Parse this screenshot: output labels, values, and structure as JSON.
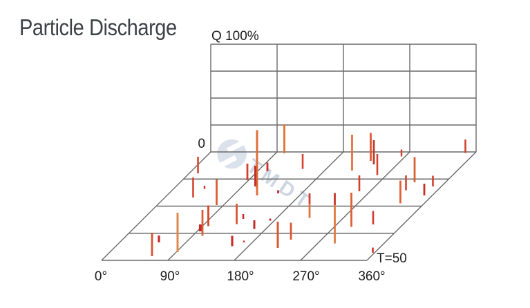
{
  "page": {
    "background": "#ffffff",
    "watermark_text": "TMDT"
  },
  "chart_data": {
    "type": "bar3d",
    "title": "Particle Discharge",
    "axes": {
      "amplitude_label": "Q 100%",
      "amplitude_min_label": "0",
      "amplitude_range_percent": [
        0,
        100
      ],
      "time_label": "T=50",
      "time_max": 50,
      "phase_tick_labels": [
        "0°",
        "90°",
        "180°",
        "270°",
        "360°"
      ],
      "phase_range_deg": [
        0,
        360
      ]
    },
    "grid": {
      "wall_columns": 4,
      "wall_rows": 4,
      "floor_rows": 4,
      "line_color": "#6e6e6e"
    },
    "bars": [
      {
        "phase": 11.9,
        "t": 9.87,
        "q0": 0,
        "q1": 15.38,
        "w": 2.6,
        "color": "#d74a2e"
      },
      {
        "phase": 38.36,
        "t": 21.02,
        "q0": 0,
        "q1": 18.59,
        "w": 2.6,
        "color": "#d64530"
      },
      {
        "phase": 42.04,
        "t": 17.04,
        "q0": 0,
        "q1": 2.88,
        "w": 2.4,
        "color": "#cc3028"
      },
      {
        "phase": 80.62,
        "t": 24.52,
        "q0": 0,
        "q1": 23.72,
        "w": 2.8,
        "color": "#dc5c33"
      },
      {
        "phase": 98.14,
        "t": 34.24,
        "q0": 0,
        "q1": 19.23,
        "w": 2.8,
        "color": "#d6452c"
      },
      {
        "phase": 94.44,
        "t": 36.62,
        "q0": 0,
        "q1": 6.41,
        "w": 4.2,
        "color": "#c22a28"
      },
      {
        "phase": 103.38,
        "t": 38.69,
        "q0": 0,
        "q1": 24.04,
        "w": 2.8,
        "color": "#da5a33"
      },
      {
        "phase": 91.8,
        "t": 46.18,
        "q0": 0,
        "q1": 36.54,
        "w": 3.0,
        "color": "#dd8a4c"
      },
      {
        "phase": 62.78,
        "t": 48.09,
        "q0": 0,
        "q1": 21.79,
        "w": 2.8,
        "color": "#d85230"
      },
      {
        "phase": 53.28,
        "t": 41.72,
        "q0": 0,
        "q1": 6.41,
        "w": 3.2,
        "color": "#c92b2b"
      },
      {
        "phase": 133.75,
        "t": 33.28,
        "q0": 0,
        "q1": 18.91,
        "w": 2.8,
        "color": "#d95432"
      },
      {
        "phase": 135.58,
        "t": 30.89,
        "q0": 0,
        "q1": 4.49,
        "w": 2.6,
        "color": "#ca2f2b"
      },
      {
        "phase": 164.26,
        "t": 35.51,
        "q0": 0,
        "q1": 8.01,
        "w": 3.0,
        "color": "#bf2d28"
      },
      {
        "phase": 174.5,
        "t": 31.69,
        "q0": 0,
        "q1": 1.92,
        "w": 2.8,
        "color": "#c62b29"
      },
      {
        "phase": 222.08,
        "t": 44.27,
        "q0": 0,
        "q1": 24.36,
        "w": 3.0,
        "color": "#da572f"
      },
      {
        "phase": 228.57,
        "t": 40.45,
        "q0": 0,
        "q1": 15.71,
        "w": 2.8,
        "color": "#d95431"
      },
      {
        "phase": 157.85,
        "t": 43.47,
        "q0": 0,
        "q1": 9.62,
        "w": 3.2,
        "color": "#ca2d2e"
      },
      {
        "phase": 168.59,
        "t": 41.72,
        "q0": 0,
        "q1": 1.6,
        "w": 2.6,
        "color": "#c93029"
      },
      {
        "phase": 122.25,
        "t": 20.06,
        "q0": 0,
        "q1": 60.58,
        "w": 3.0,
        "color": "#e06c39"
      },
      {
        "phase": 107.64,
        "t": 15.92,
        "q0": 0,
        "q1": 19.23,
        "w": 3.0,
        "color": "#c03228"
      },
      {
        "phase": 88.37,
        "t": 13.06,
        "q0": 0,
        "q1": 15.38,
        "w": 2.8,
        "color": "#d4402c"
      },
      {
        "phase": 103.29,
        "t": 8.92,
        "q0": 0,
        "q1": 8.01,
        "w": 2.8,
        "color": "#c13028"
      },
      {
        "phase": 101.73,
        "t": 0.64,
        "q0": 0,
        "q1": 26.92,
        "w": 2.8,
        "color": "#e0722e"
      },
      {
        "phase": 147.8,
        "t": 7.8,
        "q0": 0,
        "q1": 13.78,
        "w": 2.6,
        "color": "#d5412c"
      },
      {
        "phase": 148.01,
        "t": 19.11,
        "q0": 0,
        "q1": 2.88,
        "w": 2.8,
        "color": "#c62b29"
      },
      {
        "phase": 224.16,
        "t": 30.41,
        "q0": 13.14,
        "q1": 22.76,
        "w": 2.8,
        "color": "#d14030"
      },
      {
        "phase": 224.16,
        "t": 30.41,
        "q0": 0.0,
        "q1": 13.14,
        "w": 2.8,
        "color": "#dc7440"
      },
      {
        "phase": 293.29,
        "t": 42.2,
        "q0": 35.58,
        "q1": 46.79,
        "w": 2.8,
        "color": "#c53629"
      },
      {
        "phase": 293.29,
        "t": 42.2,
        "q0": 0.0,
        "q1": 35.58,
        "w": 2.8,
        "color": "#dd7c42"
      },
      {
        "phase": 217.19,
        "t": 8.6,
        "q0": 0,
        "q1": 33.33,
        "w": 2.8,
        "color": "#e1743c"
      },
      {
        "phase": 293.15,
        "t": 34.55,
        "q0": 0,
        "q1": 31.73,
        "w": 2.8,
        "color": "#da6234"
      },
      {
        "phase": 229.3,
        "t": 4.14,
        "q0": 0,
        "q1": 25.96,
        "w": 2.8,
        "color": "#da5a35"
      },
      {
        "phase": 238.23,
        "t": 5.73,
        "q0": 0,
        "q1": 22.44,
        "w": 2.8,
        "color": "#c33a2a"
      },
      {
        "phase": 257.54,
        "t": 10.67,
        "q0": 0,
        "q1": 19.55,
        "w": 2.6,
        "color": "#d4432d"
      },
      {
        "phase": 255.34,
        "t": 18.15,
        "q0": 0,
        "q1": 14.74,
        "w": 2.6,
        "color": "#d2402d"
      },
      {
        "phase": 319.38,
        "t": 33.44,
        "q0": 0,
        "q1": 12.5,
        "w": 2.6,
        "color": "#ce3c2b"
      },
      {
        "phase": 357.59,
        "t": 46.5,
        "q0": 0,
        "q1": 4.81,
        "w": 2.6,
        "color": "#d0392b"
      },
      {
        "phase": 264.88,
        "t": 2.07,
        "q0": 0,
        "q1": 6.41,
        "w": 2.4,
        "color": "#d23e2a"
      },
      {
        "phase": 318.08,
        "t": 14.01,
        "q0": 0,
        "q1": 23.4,
        "w": 2.8,
        "color": "#d8622f"
      },
      {
        "phase": 317.21,
        "t": 17.68,
        "q0": 0,
        "q1": 13.78,
        "w": 2.6,
        "color": "#d5452d"
      },
      {
        "phase": 327.63,
        "t": 23.73,
        "q0": 0,
        "q1": 21.15,
        "w": 2.8,
        "color": "#db6233"
      },
      {
        "phase": 349.13,
        "t": 20.06,
        "q0": 0,
        "q1": 10.9,
        "w": 2.8,
        "color": "#c23128"
      },
      {
        "phase": 348.58,
        "t": 15.92,
        "q0": 0,
        "q1": 9.94,
        "w": 2.6,
        "color": "#d2402c"
      },
      {
        "phase": 346.88,
        "t": 0.48,
        "q0": 0,
        "q1": 12.5,
        "w": 2.6,
        "color": "#d4422c"
      }
    ]
  },
  "colors": {
    "title": "#3d4246",
    "label": "#1c1c1c",
    "watermark": "#c7cfe0"
  }
}
